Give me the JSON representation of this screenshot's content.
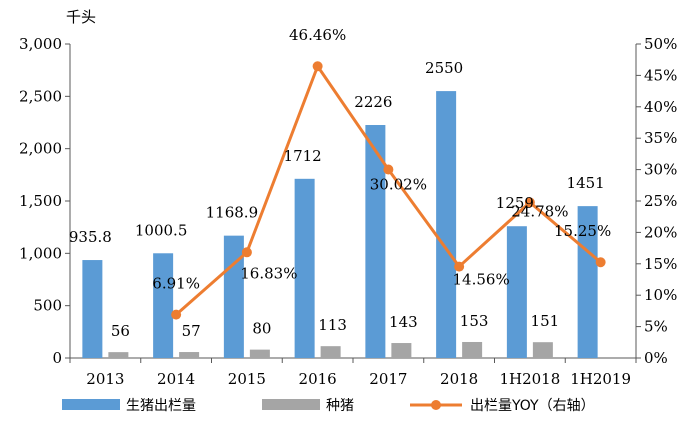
{
  "chart_data": {
    "type": "bar",
    "title": "",
    "y_unit_label": "千头",
    "categories": [
      "2013",
      "2014",
      "2015",
      "2016",
      "2017",
      "2018",
      "1H2018",
      "1H2019"
    ],
    "series": [
      {
        "name": "生猪出栏量",
        "type": "bar",
        "axis": "left",
        "color": "#5b9bd5",
        "values": [
          935.8,
          1000.5,
          1168.9,
          1712,
          2226,
          2550,
          1259,
          1451
        ],
        "labels": [
          "935.8",
          "1000.5",
          "1168.9",
          "1712",
          "2226",
          "2550",
          "1259",
          "1451"
        ]
      },
      {
        "name": "种猪",
        "type": "bar",
        "axis": "left",
        "color": "#a5a5a5",
        "values": [
          56,
          57,
          80,
          113,
          143,
          153,
          151,
          null
        ],
        "labels": [
          "56",
          "57",
          "80",
          "113",
          "143",
          "153",
          "151",
          ""
        ]
      },
      {
        "name": "出栏量YOY（右轴）",
        "type": "line",
        "axis": "right",
        "color": "#ed7d31",
        "values": [
          null,
          6.91,
          16.83,
          46.46,
          30.02,
          14.56,
          24.78,
          15.25
        ],
        "labels": [
          "",
          "6.91%",
          "16.83%",
          "46.46%",
          "30.02%",
          "14.56%",
          "24.78%",
          "15.25%"
        ]
      }
    ],
    "y_left": {
      "min": 0,
      "max": 3000,
      "step": 500,
      "tick_labels": [
        "0",
        "500",
        "1,000",
        "1,500",
        "2,000",
        "2,500",
        "3,000"
      ]
    },
    "y_right": {
      "min": 0,
      "max": 50,
      "step": 5,
      "tick_labels": [
        "0%",
        "5%",
        "10%",
        "15%",
        "20%",
        "25%",
        "30%",
        "35%",
        "40%",
        "45%",
        "50%"
      ]
    },
    "grid": false,
    "legend_position": "bottom"
  }
}
